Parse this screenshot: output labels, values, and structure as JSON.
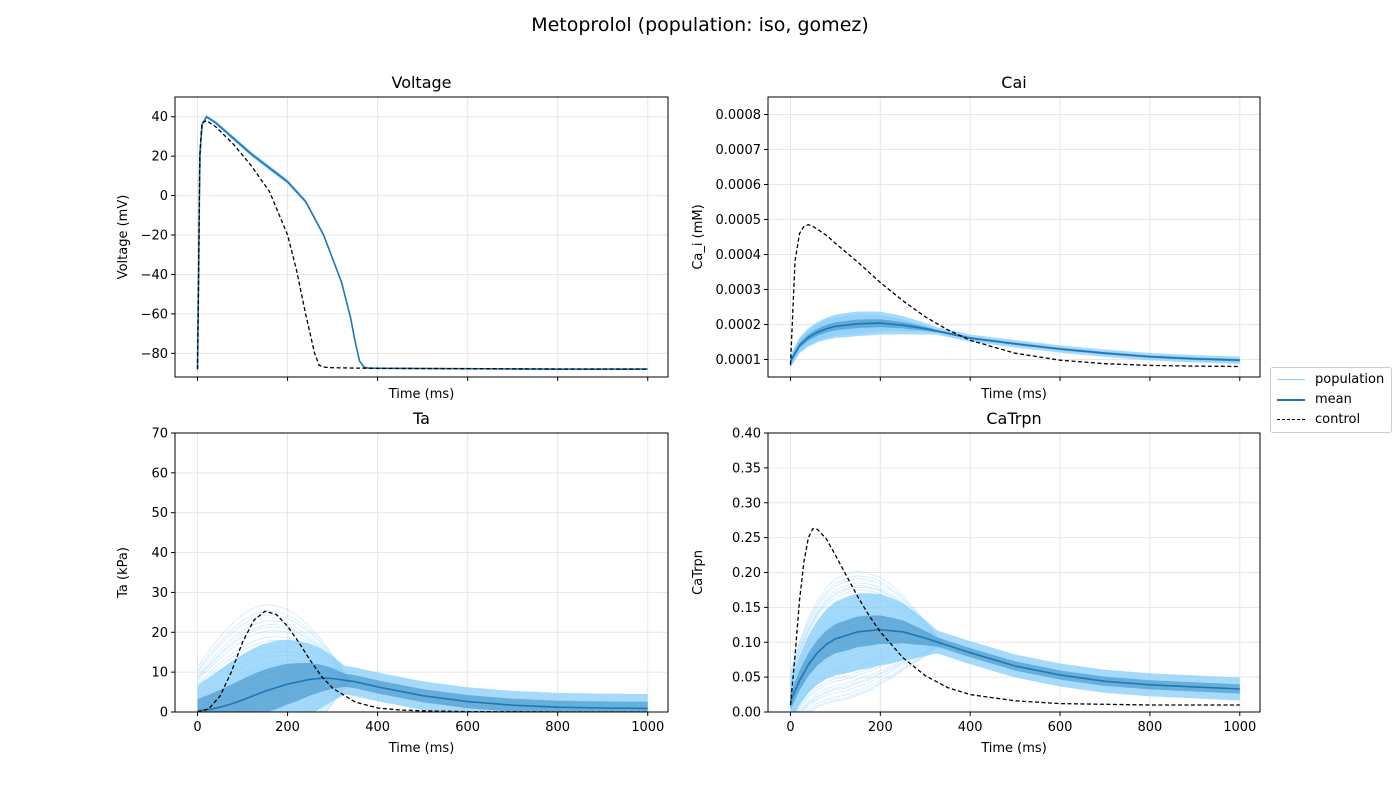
{
  "title": "Metoprolol (population: iso, gomez)",
  "colors": {
    "population": "#87cefa",
    "mean": "#1f77b4",
    "control": "#000000",
    "band_outer": "#87cefa",
    "band_inner": "#1f77b4",
    "grid": "#e6e6e6"
  },
  "legend": {
    "position": "right",
    "items": [
      {
        "label": "population",
        "style": "solid-light"
      },
      {
        "label": "mean",
        "style": "solid"
      },
      {
        "label": "control",
        "style": "dashed"
      }
    ]
  },
  "chart_data": [
    {
      "type": "line",
      "title": "Voltage",
      "xlabel": "Time (ms)",
      "ylabel": "Voltage (mV)",
      "xlim": [
        -50,
        1045
      ],
      "ylim": [
        -92,
        50
      ],
      "xticks": [
        0,
        200,
        400,
        600,
        800,
        1000
      ],
      "show_xtick_labels": false,
      "yticks": [
        -80,
        -60,
        -40,
        -20,
        0,
        20,
        40
      ],
      "ytick_labels": [
        "−80",
        "−60",
        "−40",
        "−20",
        "0",
        "20",
        "40"
      ],
      "grid": true,
      "population_spread": 1.2,
      "band": {
        "outer": 1.2,
        "inner": 0.6
      },
      "mean": {
        "x": [
          0,
          2,
          5,
          10,
          20,
          40,
          80,
          120,
          160,
          200,
          240,
          280,
          300,
          320,
          340,
          350,
          360,
          370,
          380,
          400,
          500,
          600,
          700,
          800,
          900,
          1000
        ],
        "y": [
          -88,
          -50,
          20,
          36,
          40,
          37,
          29,
          21,
          14,
          7,
          -3,
          -20,
          -32,
          -44,
          -62,
          -74,
          -84,
          -87,
          -87.5,
          -87.6,
          -87.7,
          -87.8,
          -87.9,
          -88,
          -88,
          -88
        ]
      },
      "control": {
        "x": [
          0,
          2,
          5,
          10,
          20,
          40,
          80,
          120,
          160,
          200,
          220,
          240,
          260,
          270,
          280,
          290,
          300,
          350,
          400,
          600,
          800,
          1000
        ],
        "y": [
          -88,
          -50,
          20,
          37,
          38,
          35,
          26,
          15,
          2,
          -20,
          -38,
          -60,
          -80,
          -86,
          -87,
          -87.2,
          -87.3,
          -87.5,
          -87.6,
          -87.8,
          -88,
          -88
        ]
      }
    },
    {
      "type": "line",
      "title": "Cai",
      "xlabel": "Time (ms)",
      "ylabel": "Ca_i (mM)",
      "xlim": [
        -50,
        1045
      ],
      "ylim": [
        5e-05,
        0.00085
      ],
      "xticks": [
        0,
        200,
        400,
        600,
        800,
        1000
      ],
      "show_xtick_labels": false,
      "yticks": [
        0.0001,
        0.0002,
        0.0003,
        0.0004,
        0.0005,
        0.0006,
        0.0007,
        0.0008
      ],
      "ytick_labels": [
        "0.0001",
        "0.0002",
        "0.0003",
        "0.0004",
        "0.0005",
        "0.0006",
        "0.0007",
        "0.0008"
      ],
      "grid": true,
      "population_spread": 3e-05,
      "band": {
        "outer": 3.5e-05,
        "inner": 1.2e-05
      },
      "mean": {
        "x": [
          0,
          10,
          20,
          40,
          60,
          80,
          100,
          150,
          200,
          250,
          300,
          350,
          400,
          500,
          600,
          700,
          800,
          900,
          1000
        ],
        "y": [
          9.5e-05,
          0.000118,
          0.00014,
          0.000163,
          0.000178,
          0.000188,
          0.000195,
          0.000202,
          0.000204,
          0.000198,
          0.000188,
          0.000175,
          0.000161,
          0.000145,
          0.00013,
          0.000118,
          0.000108,
          0.000102,
          9.8e-05
        ]
      },
      "control": {
        "x": [
          0,
          5,
          10,
          20,
          30,
          40,
          50,
          60,
          80,
          100,
          150,
          200,
          250,
          300,
          350,
          400,
          500,
          600,
          700,
          800,
          900,
          1000
        ],
        "y": [
          8.5e-05,
          0.00023,
          0.00038,
          0.00046,
          0.00048,
          0.000485,
          0.00048,
          0.000472,
          0.000455,
          0.000432,
          0.000378,
          0.00032,
          0.000268,
          0.000222,
          0.000185,
          0.000155,
          0.000118,
          9.8e-05,
          8.8e-05,
          8.3e-05,
          8.1e-05,
          8e-05
        ]
      }
    },
    {
      "type": "line",
      "title": "Ta",
      "xlabel": "Time (ms)",
      "ylabel": "Ta (kPa)",
      "xlim": [
        -50,
        1045
      ],
      "ylim": [
        0,
        70
      ],
      "xticks": [
        0,
        200,
        400,
        600,
        800,
        1000
      ],
      "show_xtick_labels": true,
      "yticks": [
        0,
        10,
        20,
        30,
        40,
        50,
        60,
        70
      ],
      "ytick_labels": [
        "0",
        "10",
        "20",
        "30",
        "40",
        "50",
        "60",
        "70"
      ],
      "grid": true,
      "population_spread": 25,
      "band": {
        "outer": 12,
        "inner": 5.5
      },
      "mean": {
        "x": [
          0,
          25,
          50,
          75,
          100,
          150,
          200,
          250,
          280,
          300,
          350,
          400,
          500,
          600,
          700,
          800,
          900,
          1000
        ],
        "y": [
          0.3,
          0.6,
          1.2,
          2.0,
          3.0,
          5.2,
          7.0,
          8.2,
          8.5,
          8.4,
          7.6,
          6.3,
          4.1,
          2.6,
          1.7,
          1.2,
          1.0,
          0.9
        ]
      },
      "control": {
        "x": [
          0,
          25,
          50,
          75,
          100,
          125,
          150,
          175,
          200,
          225,
          250,
          275,
          300,
          350,
          400,
          450,
          500,
          600,
          800,
          1000
        ],
        "y": [
          0,
          0.8,
          4,
          10,
          17.5,
          23,
          25.3,
          24.5,
          21.5,
          17.5,
          13,
          9,
          6,
          2.5,
          1.0,
          0.5,
          0.3,
          0.1,
          0,
          0
        ]
      }
    },
    {
      "type": "line",
      "title": "CaTrpn",
      "xlabel": "Time (ms)",
      "ylabel": "CaTrpn",
      "xlim": [
        -50,
        1045
      ],
      "ylim": [
        0,
        0.4
      ],
      "xticks": [
        0,
        200,
        400,
        600,
        800,
        1000
      ],
      "show_xtick_labels": true,
      "yticks": [
        0,
        0.05,
        0.1,
        0.15,
        0.2,
        0.25,
        0.3,
        0.35,
        0.4
      ],
      "ytick_labels": [
        "0.00",
        "0.05",
        "0.10",
        "0.15",
        "0.20",
        "0.25",
        "0.30",
        "0.35",
        "0.40"
      ],
      "grid": true,
      "population_spread": 0.1,
      "band": {
        "outer": 0.055,
        "inner": 0.022
      },
      "mean": {
        "x": [
          0,
          10,
          20,
          40,
          60,
          80,
          100,
          150,
          200,
          250,
          300,
          400,
          500,
          600,
          700,
          800,
          900,
          1000
        ],
        "y": [
          0.015,
          0.03,
          0.045,
          0.068,
          0.085,
          0.097,
          0.105,
          0.115,
          0.118,
          0.115,
          0.106,
          0.085,
          0.066,
          0.053,
          0.044,
          0.039,
          0.036,
          0.033
        ]
      },
      "control": {
        "x": [
          0,
          10,
          20,
          30,
          40,
          50,
          60,
          80,
          100,
          125,
          150,
          175,
          200,
          250,
          300,
          350,
          400,
          500,
          600,
          800,
          1000
        ],
        "y": [
          0.01,
          0.08,
          0.16,
          0.215,
          0.25,
          0.263,
          0.262,
          0.248,
          0.225,
          0.195,
          0.165,
          0.138,
          0.115,
          0.078,
          0.052,
          0.035,
          0.025,
          0.016,
          0.012,
          0.01,
          0.01
        ]
      }
    }
  ]
}
